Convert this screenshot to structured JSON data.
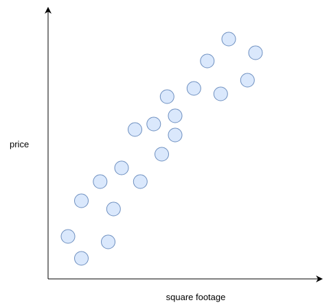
{
  "chart_data": {
    "type": "scatter",
    "title": "",
    "xlabel": "square footage",
    "ylabel": "price",
    "grid": false,
    "ticks": false,
    "legend": "none",
    "point_fill": "#dae8fc",
    "point_stroke": "#6c8ebf",
    "axis_color": "#000000",
    "xlim": [
      0,
      100
    ],
    "ylim": [
      0,
      100
    ],
    "points": [
      {
        "x": 10,
        "y": 18
      },
      {
        "x": 15,
        "y": 10
      },
      {
        "x": 15,
        "y": 31
      },
      {
        "x": 22,
        "y": 38
      },
      {
        "x": 25,
        "y": 16
      },
      {
        "x": 27,
        "y": 28
      },
      {
        "x": 30,
        "y": 43
      },
      {
        "x": 37,
        "y": 38
      },
      {
        "x": 35,
        "y": 57
      },
      {
        "x": 42,
        "y": 59
      },
      {
        "x": 45,
        "y": 48
      },
      {
        "x": 47,
        "y": 69
      },
      {
        "x": 50,
        "y": 62
      },
      {
        "x": 50,
        "y": 55
      },
      {
        "x": 57,
        "y": 72
      },
      {
        "x": 62,
        "y": 82
      },
      {
        "x": 67,
        "y": 70
      },
      {
        "x": 70,
        "y": 90
      },
      {
        "x": 77,
        "y": 75
      },
      {
        "x": 80,
        "y": 85
      }
    ]
  }
}
